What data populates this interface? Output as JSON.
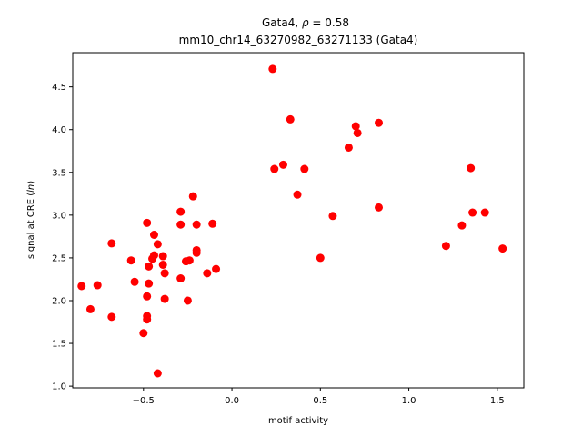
{
  "chart_data": {
    "type": "scatter",
    "title_line1_prefix": "Gata4, ",
    "title_rho_symbol": "ρ",
    "title_rho_value": " = 0.58",
    "title_line2": "mm10_chr14_63270982_63271133 (Gata4)",
    "xlabel": "motif activity",
    "ylabel_prefix": "signal at CRE (",
    "ylabel_italic": "ln",
    "ylabel_suffix": ")",
    "xlim": [
      -0.9,
      1.65
    ],
    "ylim": [
      0.98,
      4.9
    ],
    "grid": false,
    "legend": "none",
    "marker_color": "#ff0000",
    "x_ticks": [
      {
        "value": -0.5,
        "label": "−0.5"
      },
      {
        "value": 0.0,
        "label": "0.0"
      },
      {
        "value": 0.5,
        "label": "0.5"
      },
      {
        "value": 1.0,
        "label": "1.0"
      },
      {
        "value": 1.5,
        "label": "1.5"
      }
    ],
    "y_ticks": [
      {
        "value": 1.0,
        "label": "1.0"
      },
      {
        "value": 1.5,
        "label": "1.5"
      },
      {
        "value": 2.0,
        "label": "2.0"
      },
      {
        "value": 2.5,
        "label": "2.5"
      },
      {
        "value": 3.0,
        "label": "3.0"
      },
      {
        "value": 3.5,
        "label": "3.5"
      },
      {
        "value": 4.0,
        "label": "4.0"
      },
      {
        "value": 4.5,
        "label": "4.5"
      }
    ],
    "points": [
      {
        "x": -0.85,
        "y": 2.17
      },
      {
        "x": -0.8,
        "y": 1.9
      },
      {
        "x": -0.76,
        "y": 2.18
      },
      {
        "x": -0.68,
        "y": 2.67
      },
      {
        "x": -0.68,
        "y": 1.81
      },
      {
        "x": -0.57,
        "y": 2.47
      },
      {
        "x": -0.55,
        "y": 2.22
      },
      {
        "x": -0.5,
        "y": 1.62
      },
      {
        "x": -0.48,
        "y": 1.78
      },
      {
        "x": -0.48,
        "y": 1.82
      },
      {
        "x": -0.48,
        "y": 2.05
      },
      {
        "x": -0.48,
        "y": 2.91
      },
      {
        "x": -0.47,
        "y": 2.4
      },
      {
        "x": -0.47,
        "y": 2.2
      },
      {
        "x": -0.45,
        "y": 2.49
      },
      {
        "x": -0.44,
        "y": 2.53
      },
      {
        "x": -0.44,
        "y": 2.77
      },
      {
        "x": -0.42,
        "y": 2.66
      },
      {
        "x": -0.42,
        "y": 1.15
      },
      {
        "x": -0.39,
        "y": 2.52
      },
      {
        "x": -0.39,
        "y": 2.42
      },
      {
        "x": -0.38,
        "y": 2.32
      },
      {
        "x": -0.38,
        "y": 2.02
      },
      {
        "x": -0.29,
        "y": 3.04
      },
      {
        "x": -0.29,
        "y": 2.89
      },
      {
        "x": -0.29,
        "y": 2.26
      },
      {
        "x": -0.26,
        "y": 2.46
      },
      {
        "x": -0.25,
        "y": 2.0
      },
      {
        "x": -0.24,
        "y": 2.47
      },
      {
        "x": -0.22,
        "y": 3.22
      },
      {
        "x": -0.2,
        "y": 2.89
      },
      {
        "x": -0.2,
        "y": 2.59
      },
      {
        "x": -0.2,
        "y": 2.56
      },
      {
        "x": -0.14,
        "y": 2.32
      },
      {
        "x": -0.11,
        "y": 2.9
      },
      {
        "x": -0.09,
        "y": 2.37
      },
      {
        "x": 0.23,
        "y": 4.71
      },
      {
        "x": 0.24,
        "y": 3.54
      },
      {
        "x": 0.29,
        "y": 3.59
      },
      {
        "x": 0.33,
        "y": 4.12
      },
      {
        "x": 0.37,
        "y": 3.24
      },
      {
        "x": 0.41,
        "y": 3.54
      },
      {
        "x": 0.5,
        "y": 2.5
      },
      {
        "x": 0.57,
        "y": 2.99
      },
      {
        "x": 0.66,
        "y": 3.79
      },
      {
        "x": 0.7,
        "y": 4.04
      },
      {
        "x": 0.71,
        "y": 3.96
      },
      {
        "x": 0.83,
        "y": 4.08
      },
      {
        "x": 0.83,
        "y": 3.09
      },
      {
        "x": 1.21,
        "y": 2.64
      },
      {
        "x": 1.3,
        "y": 2.88
      },
      {
        "x": 1.35,
        "y": 3.55
      },
      {
        "x": 1.36,
        "y": 3.03
      },
      {
        "x": 1.43,
        "y": 3.03
      },
      {
        "x": 1.53,
        "y": 2.61
      }
    ]
  }
}
